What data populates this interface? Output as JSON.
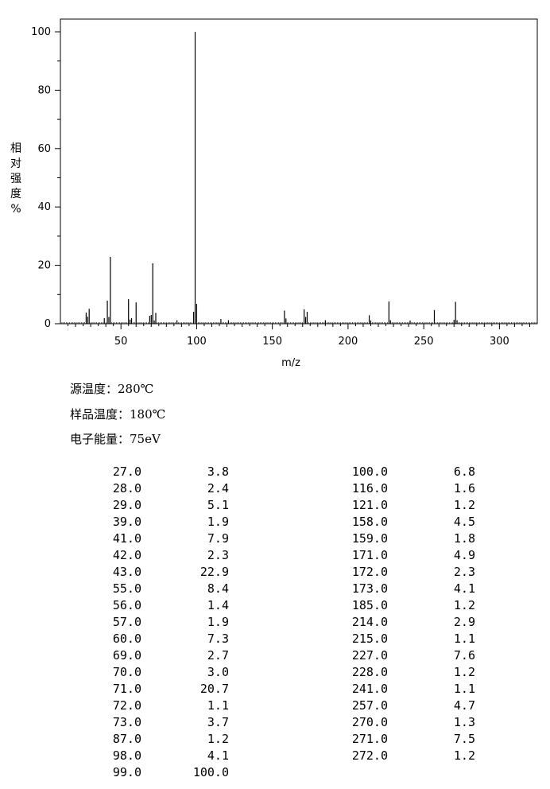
{
  "chart_data": {
    "type": "bar",
    "xlabel": "m/z",
    "ylabel_chars": [
      "相",
      "对",
      "强",
      "度",
      "%"
    ],
    "xlim": [
      10,
      325
    ],
    "ylim": [
      0,
      100
    ],
    "xticks": [
      50,
      100,
      150,
      200,
      250,
      300
    ],
    "yticks": [
      0,
      20,
      40,
      60,
      80,
      100
    ],
    "peaks": [
      [
        27.0,
        3.8
      ],
      [
        28.0,
        2.4
      ],
      [
        29.0,
        5.1
      ],
      [
        39.0,
        1.9
      ],
      [
        41.0,
        7.9
      ],
      [
        42.0,
        2.3
      ],
      [
        43.0,
        22.9
      ],
      [
        55.0,
        8.4
      ],
      [
        56.0,
        1.4
      ],
      [
        57.0,
        1.9
      ],
      [
        60.0,
        7.3
      ],
      [
        69.0,
        2.7
      ],
      [
        70.0,
        3.0
      ],
      [
        71.0,
        20.7
      ],
      [
        72.0,
        1.1
      ],
      [
        73.0,
        3.7
      ],
      [
        87.0,
        1.2
      ],
      [
        98.0,
        4.1
      ],
      [
        99.0,
        100.0
      ],
      [
        100.0,
        6.8
      ],
      [
        116.0,
        1.6
      ],
      [
        121.0,
        1.2
      ],
      [
        158.0,
        4.5
      ],
      [
        159.0,
        1.8
      ],
      [
        171.0,
        4.9
      ],
      [
        172.0,
        2.3
      ],
      [
        173.0,
        4.1
      ],
      [
        185.0,
        1.2
      ],
      [
        214.0,
        2.9
      ],
      [
        215.0,
        1.1
      ],
      [
        227.0,
        7.6
      ],
      [
        228.0,
        1.2
      ],
      [
        241.0,
        1.1
      ],
      [
        257.0,
        4.7
      ],
      [
        270.0,
        1.3
      ],
      [
        271.0,
        7.5
      ],
      [
        272.0,
        1.2
      ]
    ]
  },
  "conditions": {
    "source_temp": "源温度：280℃",
    "sample_temp": "样品温度：180℃",
    "electron_energy": "电子能量：75eV"
  },
  "table_left": {
    "mz": [
      "27.0",
      "28.0",
      "29.0",
      "39.0",
      "41.0",
      "42.0",
      "43.0",
      "55.0",
      "56.0",
      "57.0",
      "60.0",
      "69.0",
      "70.0",
      "71.0",
      "72.0",
      "73.0",
      "87.0",
      "98.0",
      "99.0"
    ],
    "abundance": [
      "3.8",
      "2.4",
      "5.1",
      "1.9",
      "7.9",
      "2.3",
      "22.9",
      "8.4",
      "1.4",
      "1.9",
      "7.3",
      "2.7",
      "3.0",
      "20.7",
      "1.1",
      "3.7",
      "1.2",
      "4.1",
      "100.0"
    ]
  },
  "table_right": {
    "mz": [
      "100.0",
      "116.0",
      "121.0",
      "158.0",
      "159.0",
      "171.0",
      "172.0",
      "173.0",
      "185.0",
      "214.0",
      "215.0",
      "227.0",
      "228.0",
      "241.0",
      "257.0",
      "270.0",
      "271.0",
      "272.0"
    ],
    "abundance": [
      "6.8",
      "1.6",
      "1.2",
      "4.5",
      "1.8",
      "4.9",
      "2.3",
      "4.1",
      "1.2",
      "2.9",
      "1.1",
      "7.6",
      "1.2",
      "1.1",
      "4.7",
      "1.3",
      "7.5",
      "1.2"
    ]
  }
}
